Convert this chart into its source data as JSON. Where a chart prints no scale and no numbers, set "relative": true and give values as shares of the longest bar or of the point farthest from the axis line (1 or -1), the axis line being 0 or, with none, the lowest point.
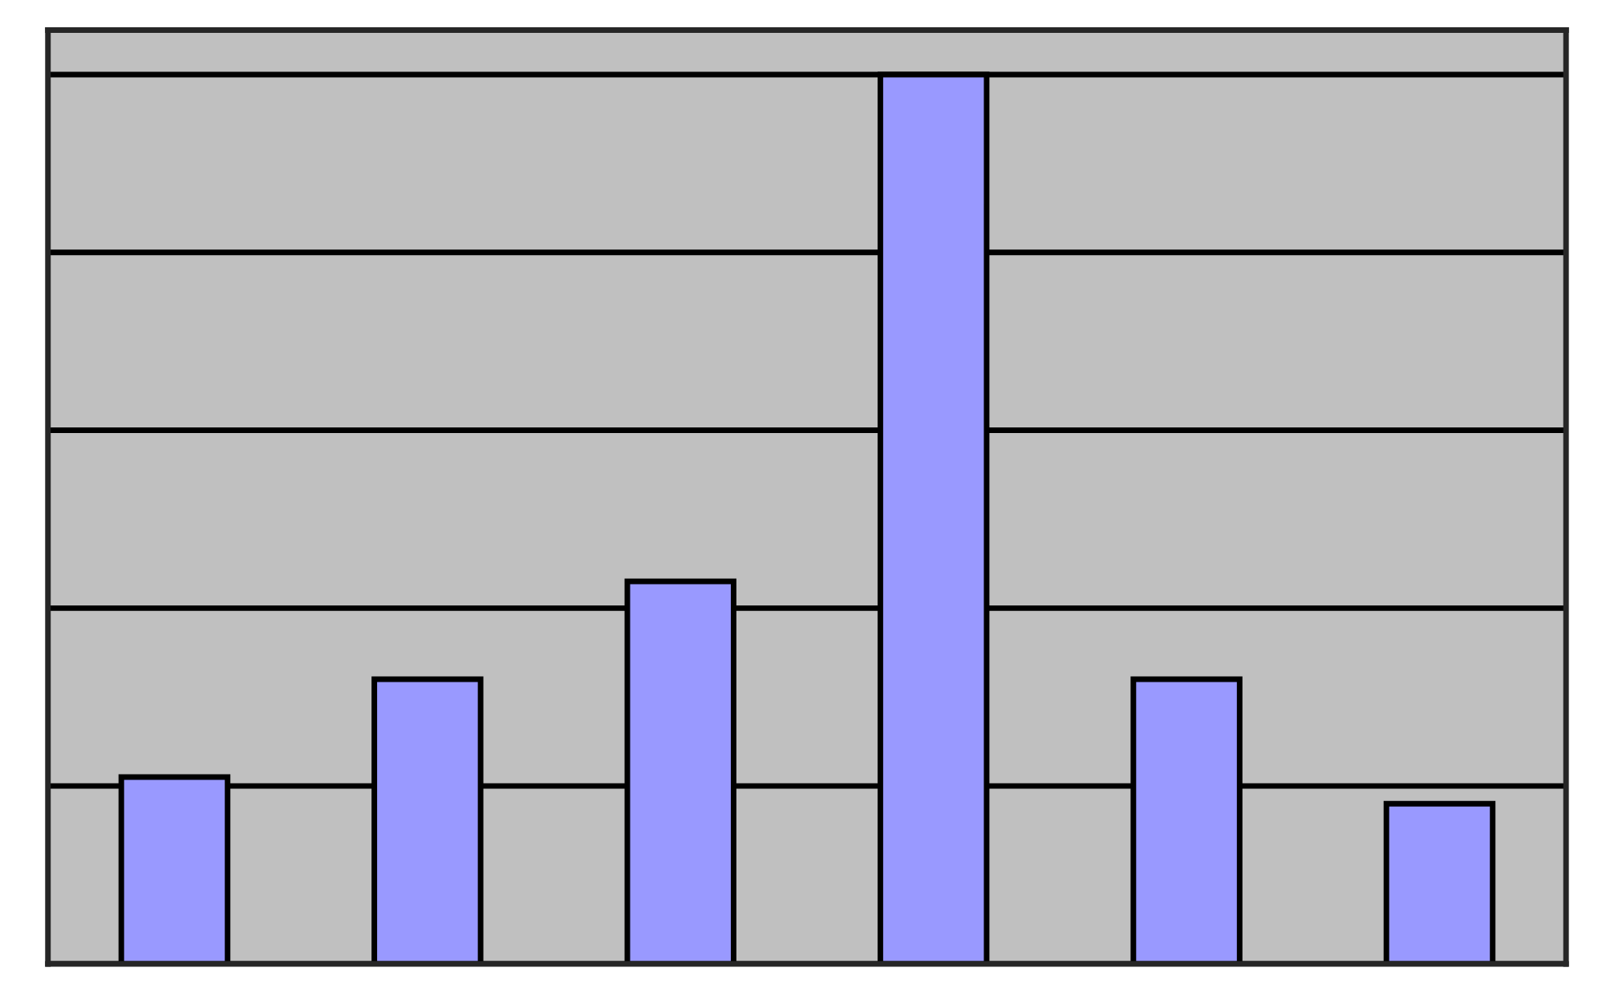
{
  "chart_data": {
    "type": "bar",
    "relative": true,
    "categories": [
      null,
      null,
      null,
      null,
      null,
      null
    ],
    "values": [
      0.21,
      0.32,
      0.43,
      1,
      0.32,
      0.18
    ],
    "color": "#9999ff",
    "grid": "y",
    "legend": false
  }
}
